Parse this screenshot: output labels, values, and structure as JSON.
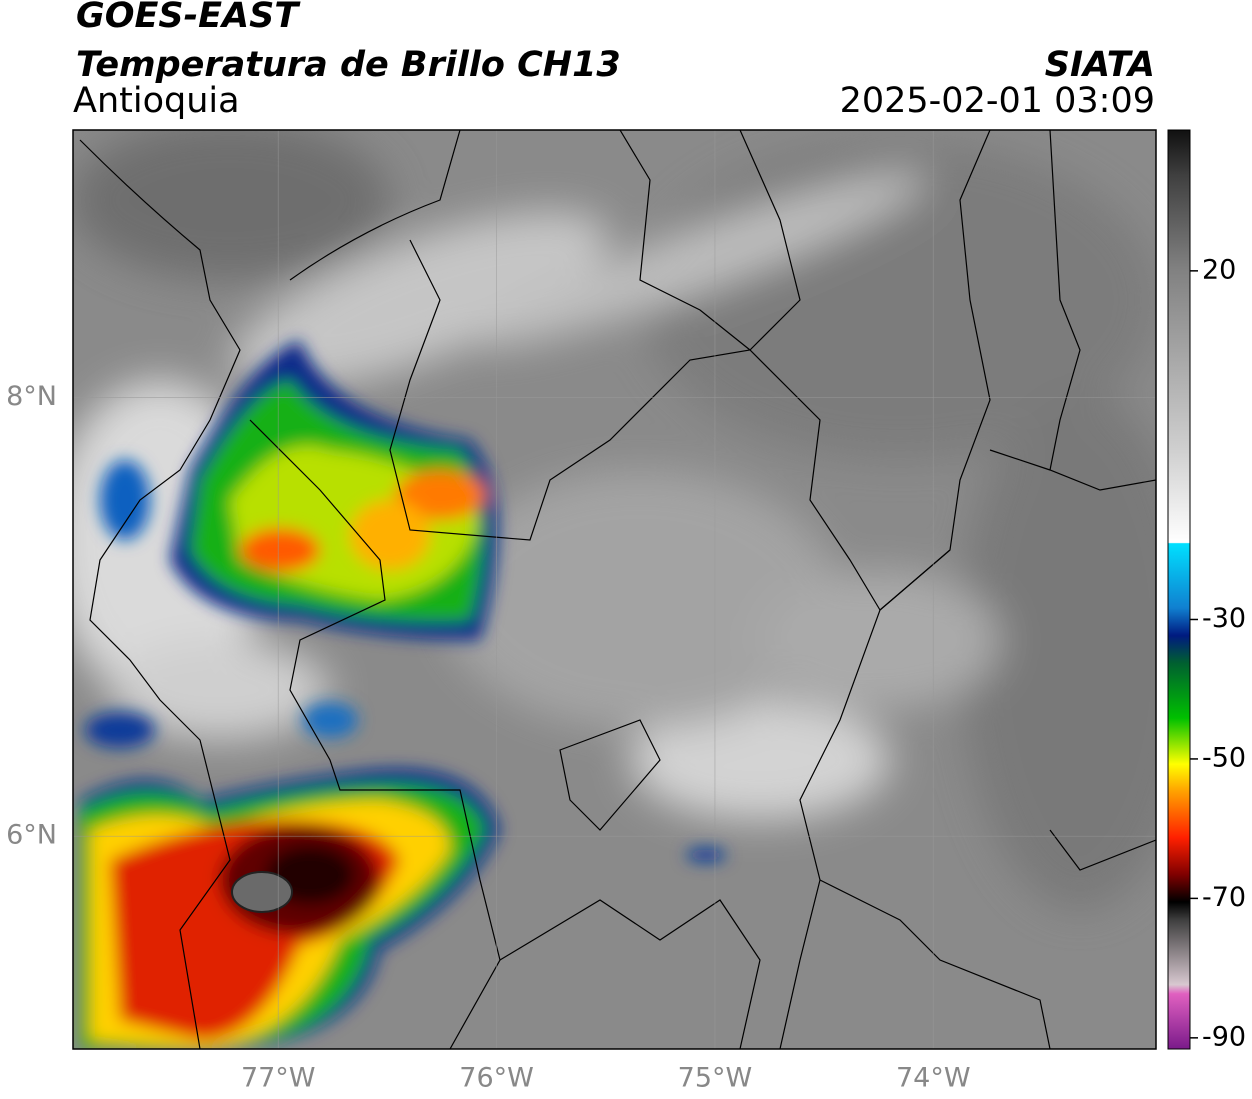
{
  "header": {
    "title": "GOES-EAST",
    "subtitle": "Temperatura de Brillo CH13",
    "region": "Antioquia",
    "source": "SIATA",
    "timestamp": "2025-02-01 03:09"
  },
  "map": {
    "xlim": [
      -77.94,
      -72.98
    ],
    "ylim": [
      5.03,
      9.22
    ],
    "xticks": [
      {
        "value": -77,
        "label": "77°W"
      },
      {
        "value": -76,
        "label": "76°W"
      },
      {
        "value": -75,
        "label": "75°W"
      },
      {
        "value": -74,
        "label": "74°W"
      }
    ],
    "yticks": [
      {
        "value": 6,
        "label": "6°N"
      },
      {
        "value": 8,
        "label": "8°N"
      }
    ]
  },
  "colorbar": {
    "lim": [
      -91.6,
      40.2
    ],
    "ticks": [
      20,
      -30,
      -50,
      -70,
      -90
    ]
  }
}
